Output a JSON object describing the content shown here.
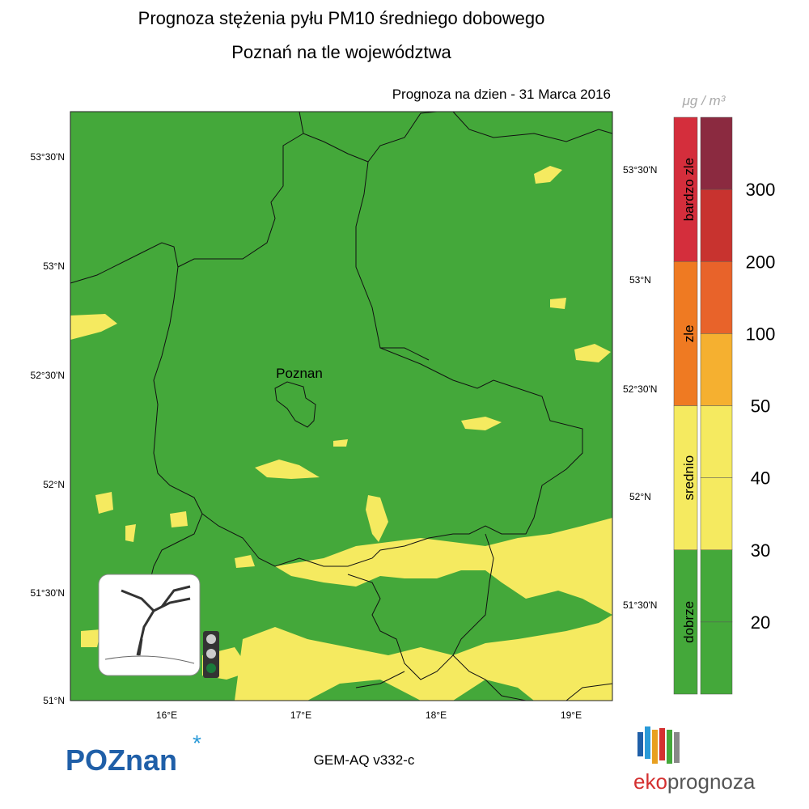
{
  "header": {
    "title": "Prognoza stężenia pyłu PM10 średniego dobowego",
    "subtitle": "Poznań na tle województwa",
    "date": "Prognoza na dzien -  31 Marca 2016"
  },
  "map": {
    "city": "Poznan",
    "lat_labels_left": [
      "53°30'N",
      "53°N",
      "52°30'N",
      "52°N",
      "51°30'N",
      "51°N"
    ],
    "lat_labels_right": [
      "53°30'N",
      "53°N",
      "52°30'N",
      "52°N",
      "51°30'N"
    ],
    "lon_labels": [
      "16°E",
      "17°E",
      "18°E",
      "19°E"
    ]
  },
  "legend": {
    "unit": "μg / m³",
    "categories": [
      {
        "label": "bardzo zle",
        "color": "#d42e3c"
      },
      {
        "label": "zle",
        "color": "#ef7a22"
      },
      {
        "label": "srednio",
        "color": "#f5ea60"
      },
      {
        "label": "dobrze",
        "color": "#44a83a"
      }
    ],
    "level_colors": [
      "#8b2a40",
      "#c8332f",
      "#e8632a",
      "#f5b030",
      "#f5ea60",
      "#f5ea60",
      "#44a83a",
      "#44a83a"
    ],
    "thresholds": [
      300,
      200,
      100,
      50,
      40,
      30,
      20
    ]
  },
  "footer": {
    "model": "GEM-AQ v332-c",
    "logo_left": "POZnan",
    "logo_right_a": "eko",
    "logo_right_b": "prognoza"
  }
}
